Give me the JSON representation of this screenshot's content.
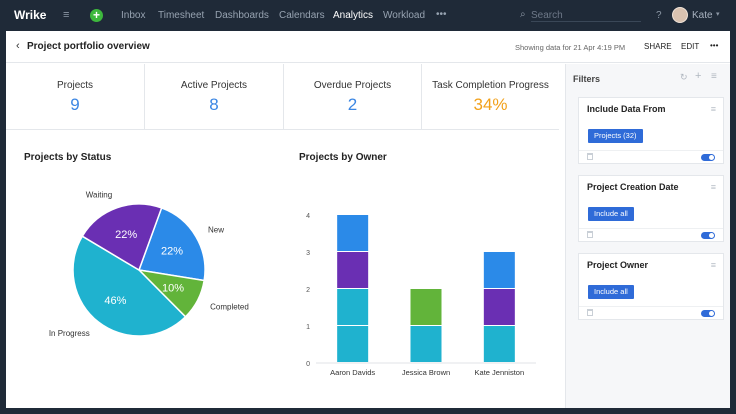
{
  "topbar": {
    "logo": "Wrike",
    "nav": [
      "Inbox",
      "Timesheet",
      "Dashboards",
      "Calendars",
      "Analytics",
      "Workload",
      "•••"
    ],
    "active": "Analytics",
    "search_placeholder": "Search",
    "help": "?",
    "user": "Kate"
  },
  "header": {
    "title": "Project portfolio overview",
    "showing": "Showing data for 21 Apr 4:19 PM",
    "share": "SHARE",
    "edit": "EDIT",
    "more": "•••"
  },
  "metrics": [
    {
      "label": "Projects",
      "value": "9"
    },
    {
      "label": "Active Projects",
      "value": "8"
    },
    {
      "label": "Overdue Projects",
      "value": "2"
    },
    {
      "label": "Task Completion Progress",
      "value": "34%"
    }
  ],
  "colors": {
    "new": "#2b8ae8",
    "completed": "#62b43a",
    "in_progress": "#1fb2cf",
    "waiting": "#6a2fb3"
  },
  "chart_data": [
    {
      "type": "pie",
      "title": "Projects by Status",
      "slices": [
        {
          "name": "New",
          "value": 22,
          "label": "22%"
        },
        {
          "name": "Completed",
          "value": 10,
          "label": "10%"
        },
        {
          "name": "In Progress",
          "value": 46,
          "label": "46%"
        },
        {
          "name": "Waiting",
          "value": 22,
          "label": "22%"
        }
      ],
      "legend": [
        "New",
        "Completed",
        "In Progress",
        "Waiting"
      ],
      "legend_position": "bottom"
    },
    {
      "type": "bar",
      "stacked": true,
      "title": "Projects by Owner",
      "categories": [
        "Aaron Davids",
        "Jessica Brown",
        "Kate Jenniston"
      ],
      "series": [
        {
          "name": "In Progress",
          "values": [
            2,
            1,
            1
          ]
        },
        {
          "name": "Completed",
          "values": [
            0,
            1,
            0
          ]
        },
        {
          "name": "Waiting",
          "values": [
            1,
            0,
            1
          ]
        },
        {
          "name": "New",
          "values": [
            1,
            0,
            1
          ]
        }
      ],
      "ylim": [
        0,
        4
      ],
      "yticks": [
        "0",
        "1",
        "2",
        "3",
        "4"
      ],
      "legend": [
        "New",
        "Completed",
        "In Progress",
        "Waiting"
      ],
      "legend_position": "bottom"
    }
  ],
  "filters": {
    "title": "Filters",
    "cards": [
      {
        "title": "Include Data From",
        "chip": "Projects (32)"
      },
      {
        "title": "Project Creation Date",
        "chip": "Include all"
      },
      {
        "title": "Project Owner",
        "chip": "Include all"
      }
    ]
  }
}
